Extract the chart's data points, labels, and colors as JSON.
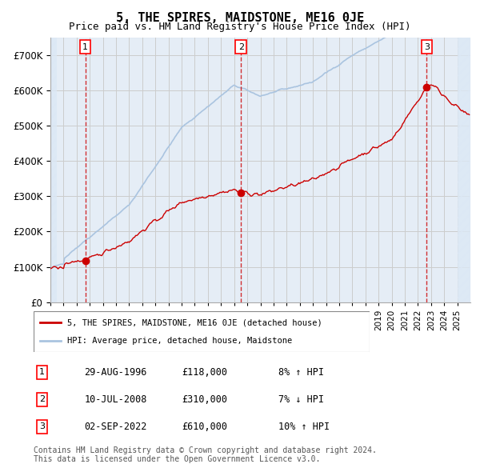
{
  "title": "5, THE SPIRES, MAIDSTONE, ME16 0JE",
  "subtitle": "Price paid vs. HM Land Registry's House Price Index (HPI)",
  "xlabel": "",
  "ylabel": "",
  "ylim": [
    0,
    750000
  ],
  "yticks": [
    0,
    100000,
    200000,
    300000,
    400000,
    500000,
    600000,
    700000
  ],
  "ytick_labels": [
    "£0",
    "£100K",
    "£200K",
    "£300K",
    "£400K",
    "£500K",
    "£600K",
    "£700K"
  ],
  "xlim_start": 1994.0,
  "xlim_end": 2026.0,
  "sale_dates": [
    1996.66,
    2008.53,
    2022.67
  ],
  "sale_prices": [
    118000,
    310000,
    610000
  ],
  "sale_labels": [
    "1",
    "2",
    "3"
  ],
  "legend_line1": "5, THE SPIRES, MAIDSTONE, ME16 0JE (detached house)",
  "legend_line2": "HPI: Average price, detached house, Maidstone",
  "table_rows": [
    [
      "1",
      "29-AUG-1996",
      "£118,000",
      "8% ↑ HPI"
    ],
    [
      "2",
      "10-JUL-2008",
      "£310,000",
      "7% ↓ HPI"
    ],
    [
      "3",
      "02-SEP-2022",
      "£610,000",
      "10% ↑ HPI"
    ]
  ],
  "footnote1": "Contains HM Land Registry data © Crown copyright and database right 2024.",
  "footnote2": "This data is licensed under the Open Government Licence v3.0.",
  "hpi_color": "#aac4e0",
  "price_color": "#cc0000",
  "bg_hatch_color": "#e8eef5",
  "grid_color": "#cccccc",
  "plot_bg": "#f0f4f8"
}
